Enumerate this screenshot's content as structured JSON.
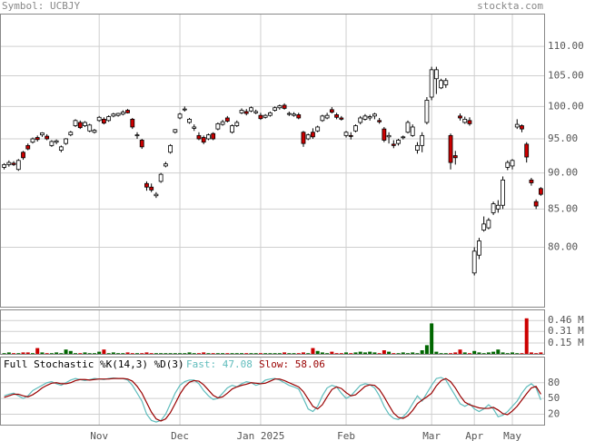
{
  "header": {
    "symbol": "Symbol: UCBJY",
    "site": "stockta.com"
  },
  "chart_data": [
    {
      "type": "candlestick",
      "categories": [
        null,
        null,
        null,
        null,
        null,
        null,
        null,
        null,
        null,
        null,
        null,
        null,
        null,
        null,
        null,
        null,
        null,
        null,
        null,
        null,
        "Nov",
        null,
        null,
        null,
        null,
        null,
        null,
        null,
        null,
        null,
        null,
        null,
        null,
        null,
        null,
        null,
        null,
        "Dec",
        null,
        null,
        null,
        null,
        null,
        null,
        null,
        null,
        null,
        null,
        null,
        null,
        null,
        null,
        null,
        null,
        "Jan 2025",
        null,
        null,
        null,
        null,
        null,
        null,
        null,
        null,
        null,
        null,
        null,
        null,
        null,
        null,
        null,
        null,
        null,
        "Feb",
        null,
        null,
        null,
        null,
        null,
        null,
        null,
        null,
        null,
        null,
        null,
        null,
        null,
        null,
        null,
        null,
        null,
        "Mar",
        null,
        null,
        null,
        null,
        null,
        null,
        null,
        null,
        "Apr",
        null,
        null,
        null,
        null,
        null,
        null,
        null,
        "May",
        null,
        null,
        null,
        null,
        null,
        null
      ],
      "ohlc": [
        [
          90.8,
          91.4,
          90.5,
          91.2
        ],
        [
          91.2,
          91.8,
          90.9,
          91.5
        ],
        [
          91.4,
          91.7,
          91.0,
          91.2
        ],
        [
          90.5,
          92.0,
          90.3,
          91.8
        ],
        [
          93.0,
          93.2,
          91.9,
          92.2
        ],
        [
          94.0,
          94.3,
          93.3,
          93.5
        ],
        [
          94.5,
          95.2,
          94.3,
          95.0
        ],
        [
          95.2,
          95.5,
          94.6,
          94.9
        ],
        [
          95.6,
          96.0,
          95.3,
          95.9
        ],
        [
          95.4,
          95.7,
          94.8,
          95.0
        ],
        [
          94.0,
          94.8,
          93.8,
          94.6
        ],
        [
          94.5,
          94.9,
          94.2,
          94.7
        ],
        [
          93.3,
          94.0,
          93.0,
          93.8
        ],
        [
          94.3,
          95.1,
          94.1,
          95.0
        ],
        [
          95.6,
          96.2,
          95.4,
          96.0
        ],
        [
          97.0,
          98.0,
          96.8,
          97.8
        ],
        [
          97.5,
          97.8,
          96.5,
          96.7
        ],
        [
          97.0,
          97.7,
          96.8,
          97.5
        ],
        [
          96.2,
          97.3,
          96.0,
          97.1
        ],
        [
          96.0,
          96.5,
          95.8,
          96.3
        ],
        [
          97.8,
          98.5,
          97.6,
          98.3
        ],
        [
          98.0,
          98.3,
          97.2,
          97.4
        ],
        [
          97.8,
          98.6,
          97.6,
          98.4
        ],
        [
          98.5,
          99.0,
          98.3,
          98.8
        ],
        [
          98.6,
          99.0,
          98.4,
          98.9
        ],
        [
          98.8,
          99.4,
          98.6,
          99.1
        ],
        [
          99.4,
          99.6,
          98.9,
          99.0
        ],
        [
          98.0,
          98.2,
          96.5,
          96.8
        ],
        [
          95.5,
          96.0,
          95.0,
          95.6
        ],
        [
          94.8,
          95.0,
          93.5,
          93.8
        ],
        [
          88.5,
          88.8,
          87.5,
          88.0
        ],
        [
          88.0,
          88.5,
          87.3,
          87.6
        ],
        [
          86.8,
          87.3,
          86.5,
          87.0
        ],
        [
          88.8,
          90.0,
          88.6,
          89.8
        ],
        [
          91.0,
          91.6,
          90.8,
          91.3
        ],
        [
          93.0,
          94.2,
          92.8,
          94.0
        ],
        [
          96.0,
          96.5,
          95.8,
          96.4
        ],
        [
          98.2,
          99.0,
          98.0,
          98.8
        ],
        [
          99.5,
          100.0,
          99.2,
          99.6
        ],
        [
          97.5,
          98.2,
          97.3,
          98.0
        ],
        [
          96.6,
          97.2,
          96.2,
          96.8
        ],
        [
          95.5,
          96.0,
          94.8,
          95.0
        ],
        [
          95.2,
          95.5,
          94.2,
          94.5
        ],
        [
          95.0,
          95.8,
          94.8,
          95.6
        ],
        [
          95.8,
          96.0,
          94.8,
          95.0
        ],
        [
          96.5,
          97.5,
          96.3,
          97.3
        ],
        [
          97.2,
          97.9,
          97.0,
          97.6
        ],
        [
          98.2,
          98.5,
          97.5,
          97.7
        ],
        [
          96.0,
          97.2,
          95.8,
          97.0
        ],
        [
          97.0,
          97.8,
          96.8,
          97.5
        ],
        [
          99.0,
          99.7,
          98.8,
          99.4
        ],
        [
          99.2,
          99.6,
          98.6,
          98.9
        ],
        [
          99.3,
          100.0,
          99.1,
          99.8
        ],
        [
          99.0,
          99.5,
          98.8,
          99.2
        ],
        [
          98.6,
          99.0,
          97.9,
          98.1
        ],
        [
          98.3,
          98.8,
          98.1,
          98.6
        ],
        [
          98.6,
          99.2,
          98.4,
          99.0
        ],
        [
          99.4,
          100.0,
          99.2,
          99.8
        ],
        [
          99.8,
          100.3,
          99.5,
          100.1
        ],
        [
          100.2,
          100.5,
          99.5,
          99.7
        ],
        [
          98.8,
          99.2,
          98.5,
          98.9
        ],
        [
          98.6,
          99.1,
          98.4,
          98.8
        ],
        [
          98.7,
          99.0,
          98.0,
          98.2
        ],
        [
          96.0,
          96.2,
          93.8,
          94.3
        ],
        [
          95.0,
          95.8,
          94.8,
          95.6
        ],
        [
          96.0,
          96.6,
          95.0,
          95.3
        ],
        [
          96.2,
          97.0,
          96.0,
          96.8
        ],
        [
          97.8,
          98.7,
          97.6,
          98.5
        ],
        [
          98.2,
          99.0,
          98.0,
          98.6
        ],
        [
          99.5,
          99.9,
          98.9,
          99.1
        ],
        [
          98.7,
          99.0,
          98.0,
          98.3
        ],
        [
          98.2,
          98.5,
          97.8,
          98.0
        ],
        [
          95.5,
          96.2,
          95.2,
          96.0
        ],
        [
          95.5,
          96.0,
          94.9,
          95.4
        ],
        [
          96.2,
          97.2,
          96.0,
          97.0
        ],
        [
          97.5,
          98.5,
          97.2,
          98.2
        ],
        [
          98.0,
          98.8,
          97.8,
          98.5
        ],
        [
          98.2,
          98.7,
          97.8,
          98.4
        ],
        [
          98.5,
          99.0,
          98.0,
          98.8
        ],
        [
          97.8,
          98.2,
          97.3,
          97.6
        ],
        [
          96.5,
          96.8,
          94.5,
          94.8
        ],
        [
          95.3,
          96.0,
          94.3,
          95.5
        ],
        [
          94.2,
          94.8,
          93.6,
          94.0
        ],
        [
          94.3,
          95.0,
          94.0,
          94.8
        ],
        [
          95.2,
          95.5,
          94.9,
          95.3
        ],
        [
          96.0,
          97.8,
          95.8,
          97.5
        ],
        [
          95.5,
          97.2,
          95.3,
          96.8
        ],
        [
          93.3,
          94.5,
          92.8,
          94.0
        ],
        [
          94.0,
          96.0,
          93.0,
          95.5
        ],
        [
          97.5,
          101.5,
          97.2,
          101.0
        ],
        [
          101.5,
          106.5,
          101.0,
          106.0
        ],
        [
          104.5,
          106.5,
          102.0,
          106.0
        ],
        [
          103.0,
          104.5,
          102.8,
          104.2
        ],
        [
          103.5,
          104.6,
          103.0,
          104.2
        ],
        [
          95.5,
          95.8,
          90.5,
          91.5
        ],
        [
          92.5,
          93.2,
          91.2,
          92.2
        ],
        [
          98.5,
          98.9,
          97.8,
          98.2
        ],
        [
          97.5,
          98.4,
          97.3,
          98.0
        ],
        [
          97.8,
          98.3,
          97.0,
          97.3
        ],
        [
          76.8,
          80.0,
          76.5,
          79.5
        ],
        [
          79.0,
          81.2,
          78.5,
          80.8
        ],
        [
          82.2,
          84.0,
          82.0,
          83.0
        ],
        [
          82.5,
          83.8,
          82.3,
          83.5
        ],
        [
          84.5,
          86.0,
          84.2,
          85.7
        ],
        [
          85.0,
          86.2,
          84.5,
          85.5
        ],
        [
          85.5,
          89.5,
          85.0,
          89.0
        ],
        [
          90.8,
          91.8,
          90.4,
          91.5
        ],
        [
          91.0,
          92.0,
          90.5,
          91.8
        ],
        [
          96.8,
          98.0,
          96.5,
          97.2
        ],
        [
          97.0,
          97.2,
          96.0,
          96.5
        ],
        [
          94.2,
          94.5,
          91.5,
          92.3
        ],
        [
          89.0,
          89.3,
          88.2,
          88.6
        ],
        [
          86.0,
          86.3,
          85.0,
          85.4
        ],
        [
          87.8,
          88.0,
          86.8,
          87.0
        ]
      ],
      "ylim": [
        72.8,
        115.7
      ],
      "log_scale": true,
      "yticks": [
        {
          "value": 80,
          "label": "80.00"
        },
        {
          "value": 85,
          "label": "85.00"
        },
        {
          "value": 90,
          "label": "90.00"
        },
        {
          "value": 95,
          "label": "95.00"
        },
        {
          "value": 100,
          "label": "100.00"
        },
        {
          "value": 105,
          "label": "105.00"
        },
        {
          "value": 110,
          "label": "110.00"
        }
      ],
      "up_color": "#ffffff",
      "down_color": "#cc0000",
      "grid": true
    },
    {
      "type": "bar",
      "values": [
        0.01,
        0.02,
        0.01,
        0.01,
        0.02,
        0.02,
        0.01,
        0.08,
        0.02,
        0.01,
        0.01,
        0.02,
        0.01,
        0.06,
        0.04,
        0.01,
        0.01,
        0.02,
        0.01,
        0.01,
        0.03,
        0.06,
        0.01,
        0.02,
        0.01,
        0.01,
        0.02,
        0.01,
        0.01,
        0.01,
        0.02,
        0.01,
        0.01,
        0.01,
        0.01,
        0.01,
        0.01,
        0.01,
        0.01,
        0.02,
        0.01,
        0.01,
        0.02,
        0.01,
        0.01,
        0.01,
        0.01,
        0.01,
        0.01,
        0.01,
        0.01,
        0.01,
        0.01,
        0.01,
        0.01,
        0.01,
        0.01,
        0.01,
        0.01,
        0.02,
        0.01,
        0.01,
        0.01,
        0.02,
        0.01,
        0.08,
        0.04,
        0.02,
        0.01,
        0.03,
        0.01,
        0.01,
        0.02,
        0.01,
        0.02,
        0.03,
        0.02,
        0.03,
        0.02,
        0.01,
        0.05,
        0.03,
        0.01,
        0.01,
        0.02,
        0.01,
        0.02,
        0.01,
        0.05,
        0.12,
        0.42,
        0.03,
        0.01,
        0.01,
        0.01,
        0.02,
        0.06,
        0.02,
        0.01,
        0.04,
        0.02,
        0.01,
        0.02,
        0.03,
        0.06,
        0.02,
        0.01,
        0.02,
        0.01,
        0.01,
        0.49,
        0.02,
        0.01,
        0.02
      ],
      "ylim": [
        0,
        0.6
      ],
      "yticks": [
        {
          "value": 0.15,
          "label": "0.15 M"
        },
        {
          "value": 0.31,
          "label": "0.31 M"
        },
        {
          "value": 0.46,
          "label": "0.46 M"
        }
      ],
      "up_color": "#006600",
      "down_color": "#cc0000",
      "grid": true
    },
    {
      "type": "line",
      "title": "Full Stochastic %K(14,3) %D(3)",
      "series": [
        {
          "name": "Fast: 47.08",
          "color": "#5fbcbc",
          "values": [
            55,
            58,
            60,
            55,
            50,
            55,
            65,
            70,
            75,
            80,
            82,
            78,
            75,
            80,
            85,
            88,
            86,
            84,
            86,
            88,
            87,
            86,
            88,
            89,
            88,
            88,
            85,
            75,
            60,
            45,
            20,
            8,
            5,
            8,
            20,
            40,
            60,
            75,
            82,
            85,
            85,
            78,
            65,
            55,
            48,
            50,
            60,
            70,
            75,
            72,
            78,
            82,
            80,
            75,
            78,
            85,
            87,
            88,
            85,
            80,
            75,
            72,
            68,
            50,
            30,
            25,
            35,
            55,
            70,
            75,
            72,
            60,
            50,
            55,
            65,
            75,
            78,
            76,
            70,
            55,
            35,
            20,
            12,
            10,
            15,
            25,
            40,
            55,
            45,
            60,
            75,
            88,
            90,
            85,
            70,
            55,
            40,
            35,
            40,
            30,
            25,
            30,
            38,
            30,
            15,
            18,
            25,
            35,
            45,
            60,
            72,
            78,
            70,
            47.08
          ]
        },
        {
          "name": "Slow: 58.06",
          "color": "#990000",
          "values": [
            52,
            55,
            58,
            58,
            55,
            53,
            57,
            63,
            70,
            75,
            79,
            80,
            78,
            78,
            80,
            84,
            86,
            86,
            85,
            86,
            87,
            87,
            87,
            88,
            88,
            88,
            87,
            83,
            73,
            60,
            42,
            24,
            11,
            7,
            11,
            23,
            40,
            58,
            72,
            81,
            84,
            83,
            76,
            66,
            56,
            51,
            53,
            60,
            68,
            72,
            75,
            77,
            80,
            79,
            78,
            79,
            83,
            87,
            87,
            84,
            80,
            76,
            72,
            63,
            49,
            35,
            30,
            38,
            53,
            67,
            72,
            69,
            61,
            55,
            57,
            65,
            73,
            76,
            75,
            67,
            53,
            37,
            22,
            14,
            12,
            17,
            27,
            40,
            47,
            53,
            60,
            74,
            84,
            88,
            82,
            70,
            55,
            43,
            38,
            35,
            32,
            31,
            31,
            33,
            28,
            21,
            19,
            26,
            35,
            47,
            59,
            70,
            73,
            58.06
          ]
        }
      ],
      "ylim": [
        0,
        128
      ],
      "yticks": [
        20,
        50,
        80
      ],
      "grid": true
    }
  ]
}
